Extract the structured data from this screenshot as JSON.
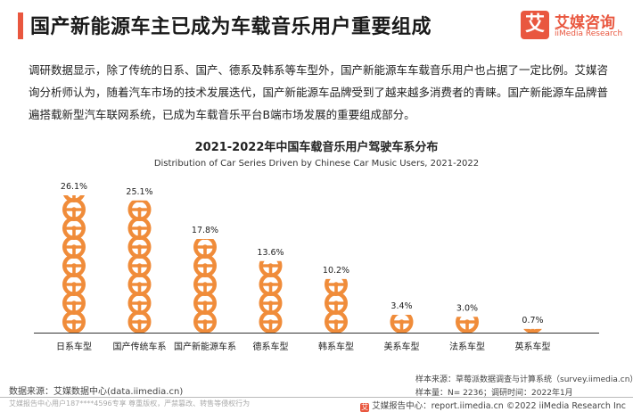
{
  "header": {
    "title": "国产新能源车主已成为车载音乐用户重要组成",
    "logo_badge": "艾",
    "logo_cn": "艾媒咨询",
    "logo_en": "iiMedia Research"
  },
  "description": "调研数据显示，除了传统的日系、国产、德系及韩系等车型外，国产新能源车车载音乐用户也占据了一定比例。艾媒咨询分析师认为，随着汽车市场的技术发展迭代，国产新能源车品牌受到了越来越多消费者的青睐。国产新能源车品牌普遍搭载新型汽车联网系统，已成为车载音乐平台B端市场发展的重要组成部分。",
  "chart_data": {
    "type": "bar",
    "title": "2021-2022年中国车载音乐用户驾驶车系分布",
    "subtitle": "Distribution of Car Series Driven by Chinese Car Music Users, 2021-2022",
    "categories": [
      "日系车型",
      "国产传统车系",
      "国产新能源车系",
      "德系车型",
      "韩系车型",
      "美系车型",
      "法系车型",
      "英系车型"
    ],
    "values": [
      26.1,
      25.1,
      17.8,
      13.6,
      10.2,
      3.4,
      3.0,
      0.7
    ],
    "value_labels": [
      "26.1%",
      "25.1%",
      "17.8%",
      "13.6%",
      "10.2%",
      "3.4%",
      "3.0%",
      "0.7%"
    ],
    "unit": "%",
    "ylim": [
      0,
      26.1
    ],
    "bar_style": "stacked steering-wheel icons",
    "color": "#f08c3a"
  },
  "notes": {
    "sample_source": "样本来源：草莓派数据调查与计算系统（survey.iimedia.cn）",
    "sample_size": "样本量：N= 2236；调研时间：2022年1月",
    "data_source": "数据来源：艾媒数据中心(data.iimedia.cn)",
    "watermark": "艾媒报告中心用户187****4596专享 尊重版权，严禁篡改、转售等侵权行为",
    "footer_badge": "艾",
    "footer": "艾媒报告中心：report.iimedia.cn  ©2022  iiMedia Research  Inc"
  }
}
